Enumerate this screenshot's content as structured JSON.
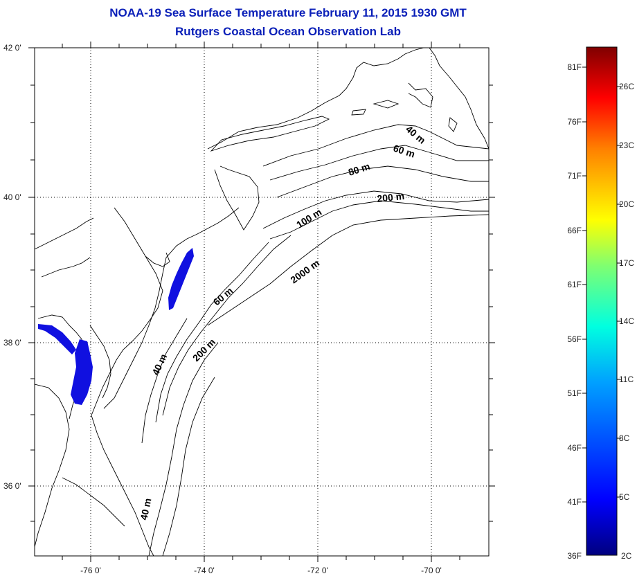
{
  "header": {
    "title": "NOAA-19 Sea Surface Temperature February 11, 2015 1930 GMT",
    "subtitle": "Rutgers Coastal Ocean Observation Lab"
  },
  "map": {
    "lon_range": [
      -77,
      -69
    ],
    "lat_range": [
      35,
      42
    ],
    "lat_ticks": [
      {
        "value": 42,
        "label": "42 0'"
      },
      {
        "value": 40,
        "label": "40 0'"
      },
      {
        "value": 38,
        "label": "38 0'"
      },
      {
        "value": 36,
        "label": "36 0'"
      }
    ],
    "lon_ticks": [
      {
        "value": -76,
        "label": "-76 0'"
      },
      {
        "value": -74,
        "label": "-74 0'"
      },
      {
        "value": -72,
        "label": "-72 0'"
      },
      {
        "value": -70,
        "label": "-70 0'"
      }
    ],
    "grid": true,
    "sst_patch_color": "#1010e0",
    "contour_labels": [
      {
        "id": "c40-north",
        "text": "40 m"
      },
      {
        "id": "c60-north",
        "text": "60 m"
      },
      {
        "id": "c80",
        "text": "80 m"
      },
      {
        "id": "c200-north",
        "text": "200 m"
      },
      {
        "id": "c100",
        "text": "100 m"
      },
      {
        "id": "c2000",
        "text": "2000 m"
      },
      {
        "id": "c60-south",
        "text": "60 m"
      },
      {
        "id": "c200-south",
        "text": "200 m"
      },
      {
        "id": "c40-mid",
        "text": "40 m"
      },
      {
        "id": "c40-south",
        "text": "40 m"
      }
    ]
  },
  "colorbar": {
    "min_c": 2,
    "max_c": 28,
    "fahrenheit_labels": [
      "81F",
      "76F",
      "71F",
      "66F",
      "61F",
      "56F",
      "51F",
      "46F",
      "41F",
      "36F"
    ],
    "celsius_labels": [
      "26C",
      "23C",
      "20C",
      "17C",
      "14C",
      "11C",
      "8C",
      "5C",
      "2C"
    ]
  }
}
